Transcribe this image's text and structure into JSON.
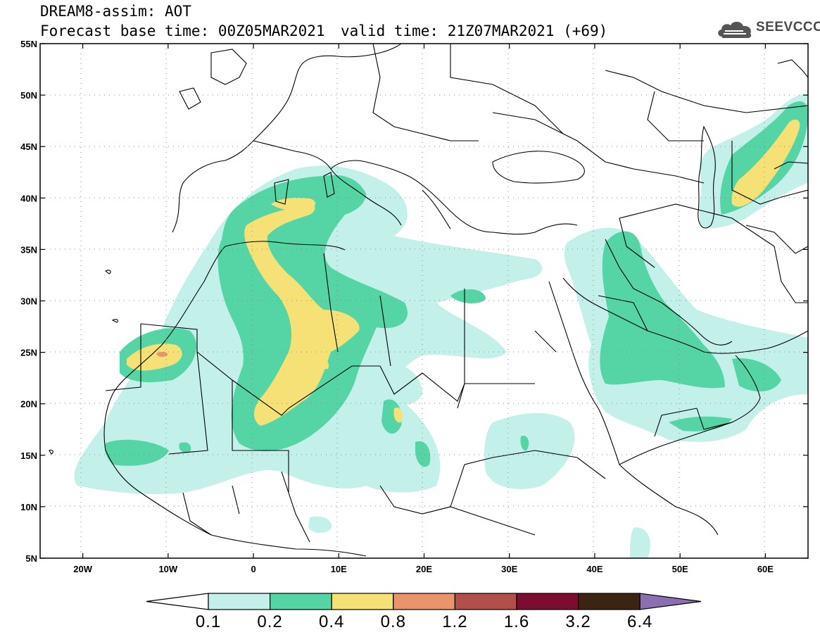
{
  "header": {
    "title": "DREAM8-assim: AOT",
    "base_time": "Forecast base time: 00Z05MAR2021",
    "valid_time": "valid time: 21Z07MAR2021 (+69)",
    "logo_text": "SEEVCCC"
  },
  "map": {
    "lon_range": [
      -25,
      65
    ],
    "lat_range": [
      5,
      55
    ],
    "lat_ticks": [
      "55N",
      "50N",
      "45N",
      "40N",
      "35N",
      "30N",
      "25N",
      "20N",
      "15N",
      "10N",
      "5N"
    ],
    "lon_ticks": [
      "20W",
      "10W",
      "0",
      "10E",
      "20E",
      "30E",
      "40E",
      "50E",
      "60E"
    ],
    "field": "Aerosol optical thickness (dust)"
  },
  "colorbar": {
    "labels": [
      "0.1",
      "0.2",
      "0.4",
      "0.8",
      "1.2",
      "1.6",
      "3.2",
      "6.4"
    ],
    "colors": [
      "#c4f0ea",
      "#55d5a6",
      "#f5e176",
      "#e9946a",
      "#b1504b",
      "#7c0c30",
      "#3b2411",
      "#8b6fb1"
    ]
  }
}
